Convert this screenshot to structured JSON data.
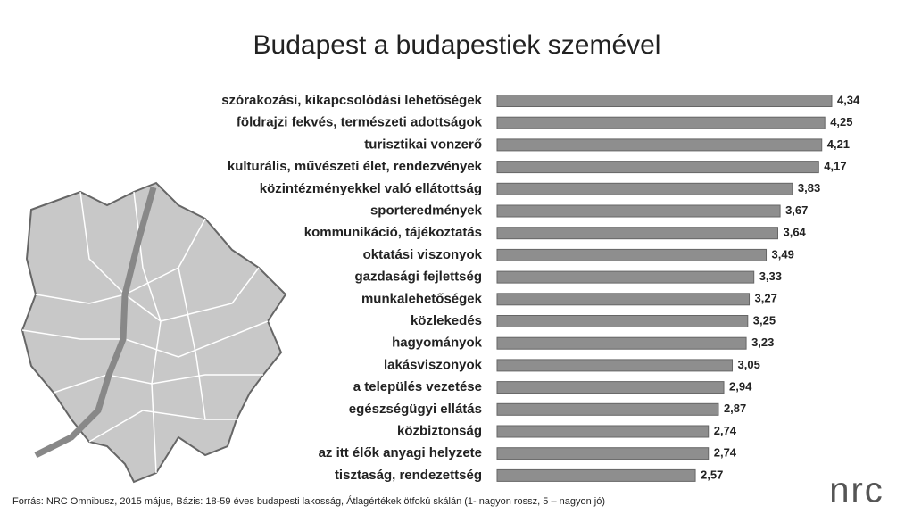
{
  "chart_data": {
    "type": "bar",
    "orientation": "horizontal",
    "title": "Budapest a budapestiek szemével",
    "categories": [
      "szórakozási, kikapcsolódási lehetőségek",
      "földrajzi fekvés, természeti adottságok",
      "turisztikai vonzerő",
      "kulturális, művészeti élet, rendezvények",
      "közintézményekkel való ellátottság",
      "sporteredmények",
      "kommunikáció, tájékoztatás",
      "oktatási viszonyok",
      "gazdasági fejlettség",
      "munkalehetőségek",
      "közlekedés",
      "hagyományok",
      "lakásviszonyok",
      "a település vezetése",
      "egészségügyi ellátás",
      "közbiztonság",
      "az itt élők anyagi helyzete",
      "tisztaság, rendezettség"
    ],
    "values": [
      4.34,
      4.25,
      4.21,
      4.17,
      3.83,
      3.67,
      3.64,
      3.49,
      3.33,
      3.27,
      3.25,
      3.23,
      3.05,
      2.94,
      2.87,
      2.74,
      2.74,
      2.57
    ],
    "value_labels": [
      "4,34",
      "4,25",
      "4,21",
      "4,17",
      "3,83",
      "3,67",
      "3,64",
      "3,49",
      "3,33",
      "3,27",
      "3,25",
      "3,23",
      "3,05",
      "2,94",
      "2,87",
      "2,74",
      "2,74",
      "2,57"
    ],
    "color": "#8e8e8e",
    "source": "Forrás: NRC Omnibusz, 2015 május, Bázis: 18-59 éves budapesti lakosság, Átlagértékek ötfokú skálán (1- nagyon rossz, 5 – nagyon jó)",
    "logo": "nrc"
  }
}
